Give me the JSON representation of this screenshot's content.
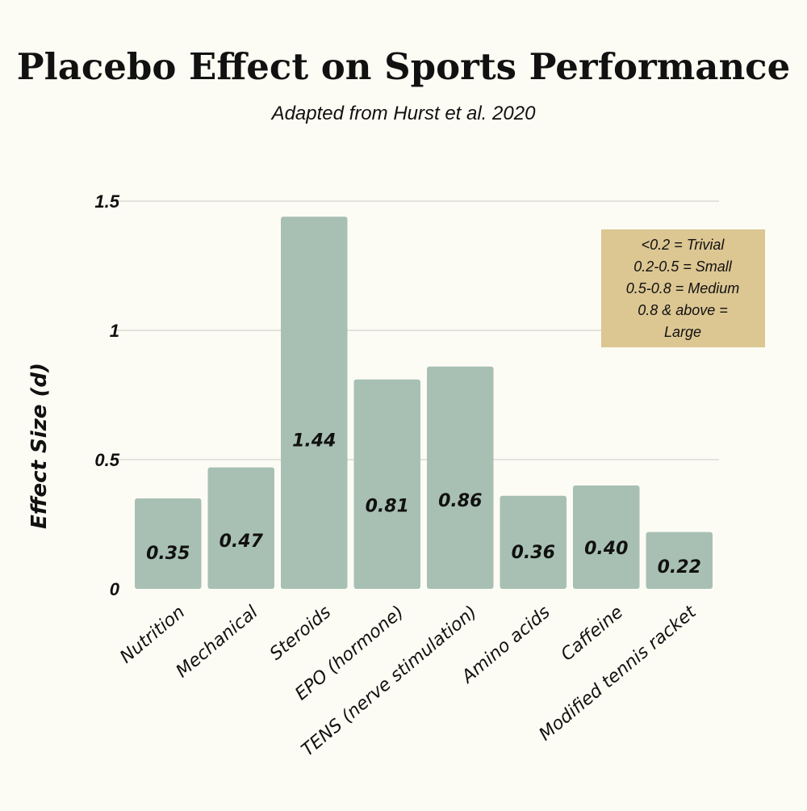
{
  "chart_data": {
    "type": "bar",
    "title": "Placebo Effect on Sports Performance",
    "subtitle": "Adapted from Hurst et al. 2020",
    "xlabel": "",
    "ylabel": "Effect Size  (d)",
    "ylim": [
      0,
      1.5
    ],
    "yticks": [
      {
        "value": 0,
        "label": "0"
      },
      {
        "value": 0.5,
        "label": "0.5"
      },
      {
        "value": 1,
        "label": "1"
      },
      {
        "value": 1.5,
        "label": "1.5"
      }
    ],
    "grid": true,
    "categories": [
      "Nutrition",
      "Mechanical",
      "Steroids",
      "EPO (hormone)",
      "TENS (nerve stimulation)",
      "Amino acids",
      "Caffeine",
      "Modified tennis racket"
    ],
    "values": [
      0.35,
      0.47,
      1.44,
      0.81,
      0.86,
      0.36,
      0.4,
      0.22
    ],
    "data_labels": [
      "0.35",
      "0.47",
      "1.44",
      "0.81",
      "0.86",
      "0.36",
      "0.40",
      "0.22"
    ],
    "legend_position": "top-right",
    "legend_lines": [
      "<0.2 = Trivial",
      "0.2-0.5 = Small",
      "0.5-0.8 = Medium",
      "0.8 & above =",
      "Large"
    ],
    "colors": {
      "bar": "#a8c0b4",
      "legend": "#dcc692",
      "background": "#fdfcf4"
    }
  }
}
